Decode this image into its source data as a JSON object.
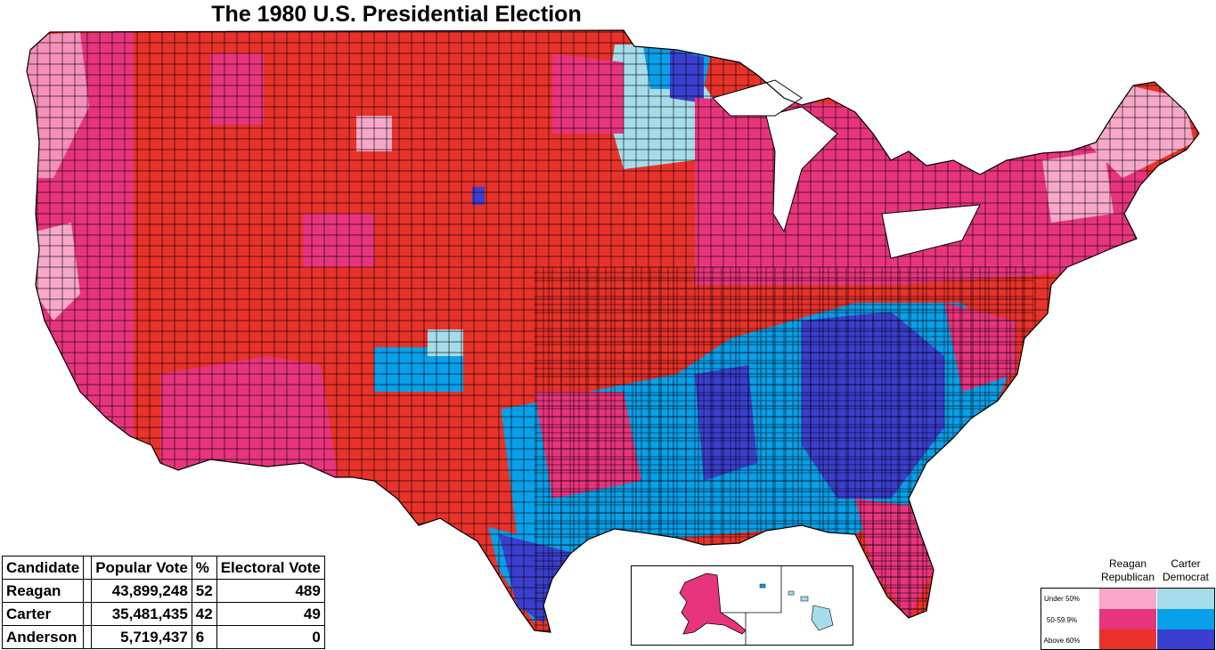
{
  "title": "The 1980 U.S. Presidential Election",
  "table": {
    "headers": [
      "Candidate",
      "Popular Vote",
      "%",
      "Electoral Vote"
    ],
    "rows": [
      {
        "candidate": "Reagan",
        "popular_vote": "43,899,248",
        "percent": "52",
        "electoral_vote": "489"
      },
      {
        "candidate": "Carter",
        "popular_vote": "35,481,435",
        "percent": "42",
        "electoral_vote": "49"
      },
      {
        "candidate": "Anderson",
        "popular_vote": "5,719,437",
        "percent": "6",
        "electoral_vote": "0"
      }
    ]
  },
  "legend": {
    "reagan_label": "Reagan\nRepublican",
    "carter_label": "Carter\nDemocrat",
    "rows": [
      "Under 50%",
      "50-59.9%",
      "Above 60%"
    ],
    "reagan_colors": [
      "#f7a8c9",
      "#e8347d",
      "#e8322a"
    ],
    "carter_colors": [
      "#a5dcea",
      "#08a0e9",
      "#3b3fcf"
    ]
  },
  "colors": {
    "border": "#000000",
    "reagan_light": "#f7a8c9",
    "reagan_mid": "#e8347d",
    "reagan_dark": "#e8322a",
    "carter_light": "#a5dcea",
    "carter_mid": "#08a0e9",
    "carter_dark": "#3b3fcf"
  }
}
